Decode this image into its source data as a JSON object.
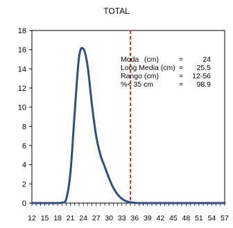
{
  "chart_data": {
    "type": "line",
    "title": "TOTAL",
    "xlabel": "",
    "ylabel": "",
    "xlim": [
      12,
      57
    ],
    "ylim": [
      0,
      18
    ],
    "y_ticks": [
      0,
      2,
      4,
      6,
      8,
      10,
      12,
      14,
      16,
      18
    ],
    "x_tick_labels": [
      12,
      15,
      18,
      21,
      24,
      27,
      30,
      33,
      36,
      39,
      42,
      45,
      48,
      51,
      54,
      57
    ],
    "grid": false,
    "series": [
      {
        "color": "#2e4f80",
        "points": [
          [
            12,
            0.0
          ],
          [
            13,
            0.0
          ],
          [
            14,
            0.0
          ],
          [
            15,
            0.0
          ],
          [
            16,
            0.0
          ],
          [
            17,
            0.0
          ],
          [
            18,
            0.0
          ],
          [
            19,
            0.05
          ],
          [
            20,
            0.4
          ],
          [
            21,
            3.2
          ],
          [
            22,
            9.5
          ],
          [
            23,
            15.2
          ],
          [
            24,
            16.1
          ],
          [
            25,
            14.3
          ],
          [
            26,
            10.3
          ],
          [
            27,
            7.0
          ],
          [
            28,
            5.0
          ],
          [
            29,
            3.8
          ],
          [
            30,
            2.6
          ],
          [
            31,
            1.6
          ],
          [
            32,
            0.9
          ],
          [
            33,
            0.45
          ],
          [
            34,
            0.2
          ],
          [
            35,
            0.08
          ],
          [
            36,
            0.03
          ],
          [
            37,
            0.0
          ],
          [
            40,
            0.0
          ],
          [
            45,
            0.0
          ],
          [
            50,
            0.0
          ],
          [
            55,
            0.0
          ],
          [
            57,
            0.0
          ]
        ]
      }
    ],
    "reference_line": {
      "x": 35,
      "color": "#cc0000",
      "style": "dashed"
    },
    "annotation_rows": [
      {
        "label": "Moda",
        "unit": "(cm)",
        "eq": "=",
        "value": "24"
      },
      {
        "label": "Long Media (cm)",
        "unit": "",
        "eq": "=",
        "value": "25.5"
      },
      {
        "label": "Rango",
        "unit": "(cm)",
        "eq": "=",
        "value": "12-56"
      },
      {
        "label": "%< 35 cm",
        "unit": "",
        "eq": "=",
        "value": "98.9"
      }
    ]
  }
}
